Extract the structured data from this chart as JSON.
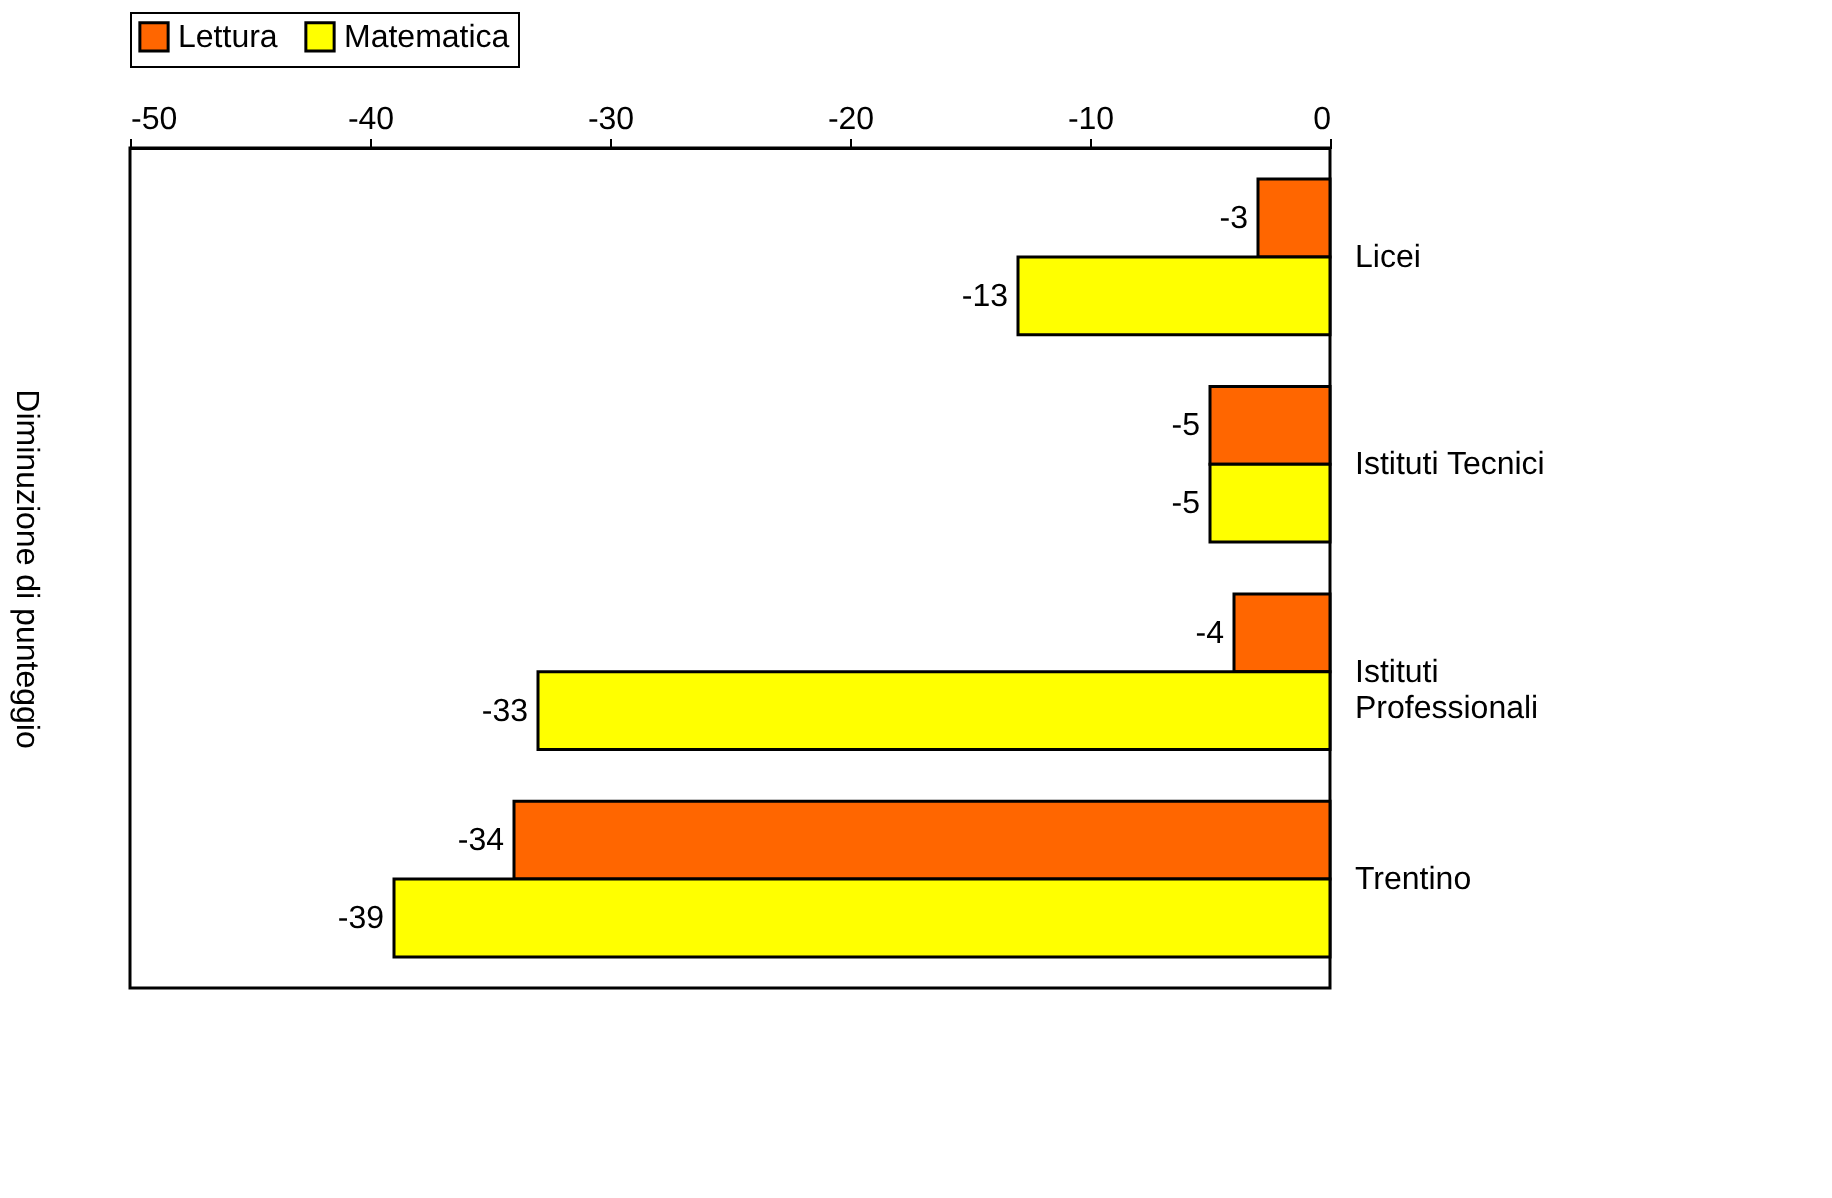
{
  "chart_data": {
    "type": "bar",
    "orientation": "horizontal",
    "ylabel": "Diminuzione di punteggio",
    "categories": [
      "Licei",
      "Istituti Tecnici",
      "Istituti Professionali",
      "Trentino"
    ],
    "series": [
      {
        "name": "Lettura",
        "color": "#ff6600",
        "values": [
          -3,
          -5,
          -4,
          -34
        ]
      },
      {
        "name": "Matematica",
        "color": "#ffff00",
        "values": [
          -13,
          -5,
          -33,
          -39
        ]
      }
    ],
    "xlim": [
      -50,
      0
    ],
    "xticks": [
      -50,
      -40,
      -30,
      -20,
      -10,
      0
    ],
    "data_labels": true,
    "legend": "top",
    "grid": false
  }
}
